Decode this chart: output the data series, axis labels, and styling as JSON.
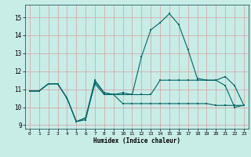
{
  "xlabel": "Humidex (Indice chaleur)",
  "bg_color": "#c8ece6",
  "grid_color": "#d4a0a0",
  "line_color": "#006666",
  "xlim": [
    -0.5,
    23.5
  ],
  "ylim": [
    8.8,
    15.7
  ],
  "yticks": [
    9,
    10,
    11,
    12,
    13,
    14,
    15
  ],
  "xticks": [
    0,
    1,
    2,
    3,
    4,
    5,
    6,
    7,
    8,
    9,
    10,
    11,
    12,
    13,
    14,
    15,
    16,
    17,
    18,
    19,
    20,
    21,
    22,
    23
  ],
  "line1_x": [
    0,
    1,
    2,
    3,
    4,
    5,
    6,
    7,
    8,
    9,
    10,
    11,
    12,
    13,
    14,
    15,
    16,
    17,
    18,
    19,
    20,
    21,
    22,
    23
  ],
  "line1_y": [
    10.9,
    10.9,
    11.3,
    11.3,
    10.5,
    9.2,
    9.3,
    11.4,
    10.8,
    10.7,
    10.7,
    10.7,
    10.7,
    10.7,
    11.5,
    11.5,
    11.5,
    11.5,
    11.5,
    11.5,
    11.5,
    11.2,
    10.0,
    10.1
  ],
  "line2_x": [
    0,
    1,
    2,
    3,
    4,
    5,
    6,
    7,
    8,
    9,
    10,
    11,
    12,
    13,
    14,
    15,
    16,
    17,
    18,
    19,
    20,
    21,
    22,
    23
  ],
  "line2_y": [
    10.9,
    10.9,
    11.3,
    11.3,
    10.5,
    9.2,
    9.4,
    11.5,
    10.8,
    10.7,
    10.8,
    10.7,
    12.8,
    14.3,
    14.7,
    15.2,
    14.6,
    13.2,
    11.6,
    11.5,
    11.5,
    11.7,
    11.2,
    10.1
  ],
  "line3_x": [
    0,
    1,
    2,
    3,
    4,
    5,
    6,
    7,
    8,
    9,
    10,
    11,
    12,
    13,
    14,
    15,
    16,
    17,
    18,
    19,
    20,
    21,
    22,
    23
  ],
  "line3_y": [
    10.9,
    10.9,
    11.3,
    11.3,
    10.5,
    9.2,
    9.4,
    11.3,
    10.7,
    10.7,
    10.2,
    10.2,
    10.2,
    10.2,
    10.2,
    10.2,
    10.2,
    10.2,
    10.2,
    10.2,
    10.1,
    10.1,
    10.1,
    10.1
  ]
}
